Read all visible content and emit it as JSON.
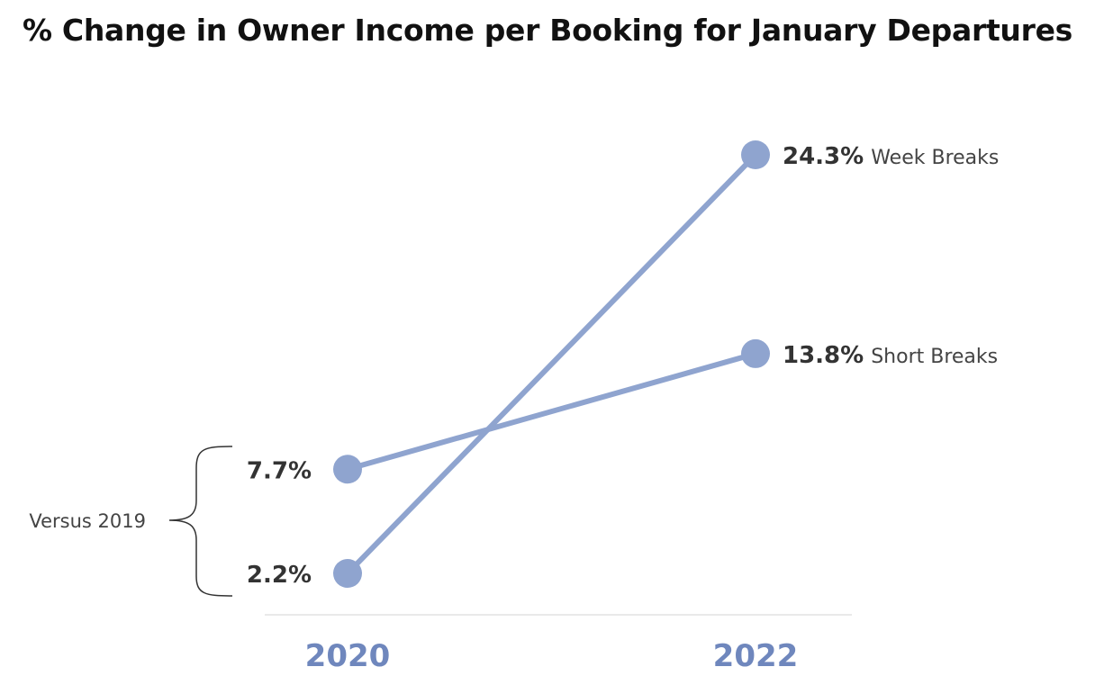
{
  "chart_data": {
    "type": "line",
    "title": "% Change in Owner Income per Booking for January Departures",
    "categories": [
      "2020",
      "2022"
    ],
    "series": [
      {
        "name": "Week Breaks",
        "values": [
          2.2,
          24.3
        ],
        "labels": [
          "2.2%",
          "24.3%"
        ]
      },
      {
        "name": "Short Breaks",
        "values": [
          7.7,
          13.8
        ],
        "labels": [
          "7.7%",
          "13.8%"
        ]
      }
    ],
    "annotation": "Versus 2019",
    "xlabel": "",
    "ylabel": "",
    "grid": false,
    "legend": "none (series named at line ends)",
    "colors": {
      "line": "#8FA4CF",
      "tick": "#6F87BD",
      "label": "#333333"
    }
  }
}
